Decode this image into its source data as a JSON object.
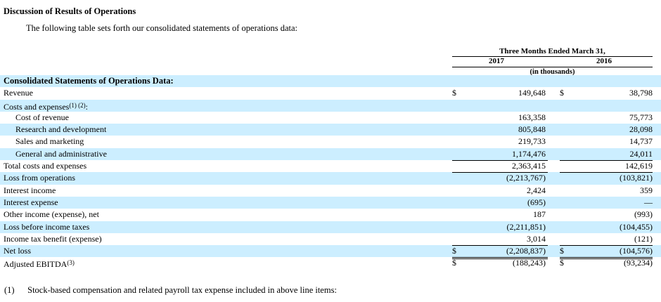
{
  "heading": "Discussion of Results of Operations",
  "intro": "The following table sets forth our consolidated statements of operations data:",
  "period_header": {
    "title": "Three Months Ended March 31,",
    "year_a": "2017",
    "year_b": "2016",
    "units": "(in thousands)"
  },
  "rows": [
    {
      "label": "Consolidated Statements of Operations Data:",
      "section": true,
      "shade": true
    },
    {
      "label": "Revenue",
      "cur1": "$",
      "v1": "149,648",
      "cur2": "$",
      "v2": "38,798"
    },
    {
      "label": "Costs and expenses",
      "sup": "(1) (2)",
      "suffix": ":",
      "shade": true
    },
    {
      "label": "Cost of revenue",
      "indent": true,
      "v1": "163,358",
      "v2": "75,773"
    },
    {
      "label": "Research and development",
      "indent": true,
      "v1": "805,848",
      "v2": "28,098",
      "shade": true
    },
    {
      "label": "Sales and marketing",
      "indent": true,
      "v1": "219,733",
      "v2": "14,737"
    },
    {
      "label": "General and administrative",
      "indent": true,
      "v1": "1,174,476",
      "v2": "24,011",
      "shade": true
    },
    {
      "label": "Total costs and expenses",
      "v1": "2,363,415",
      "v2": "142,619"
    },
    {
      "label": "Loss from operations",
      "v1": "(2,213,767)",
      "v2": "(103,821)",
      "shade": true
    },
    {
      "label": "Interest income",
      "v1": "2,424",
      "v2": "359"
    },
    {
      "label": "Interest expense",
      "v1": "(695)",
      "v2": "—",
      "shade": true
    },
    {
      "label": "Other income (expense), net",
      "v1": "187",
      "v2": "(993)"
    },
    {
      "label": "Loss before income taxes",
      "v1": "(2,211,851)",
      "v2": "(104,455)",
      "shade": true
    },
    {
      "label": "Income tax benefit (expense)",
      "v1": "3,014",
      "v2": "(121)"
    },
    {
      "label": "Net loss",
      "cur1": "$",
      "v1": "(2,208,837)",
      "cur2": "$",
      "v2": "(104,576)",
      "shade": true
    },
    {
      "label": "Adjusted EBITDA",
      "sup": "(3)",
      "cur1": "$",
      "v1": "(188,243)",
      "cur2": "$",
      "v2": "(93,234)"
    }
  ],
  "footnote": {
    "number": "(1)",
    "text": "Stock-based compensation and related payroll tax expense included in above line items:"
  }
}
